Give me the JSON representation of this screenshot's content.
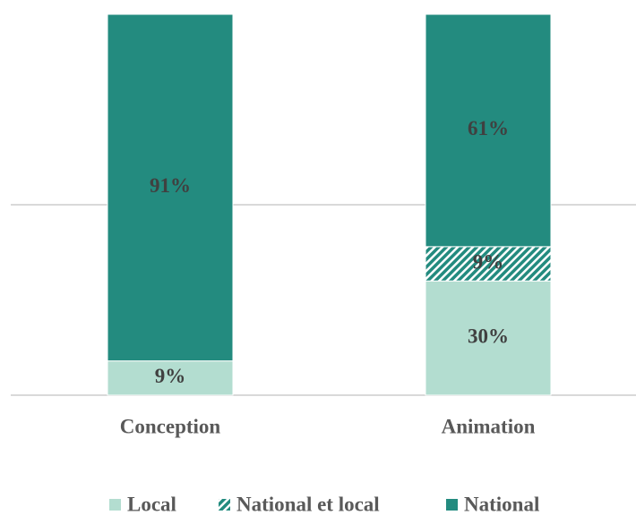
{
  "chart_data": {
    "type": "stacked_bar",
    "categories": [
      "Conception",
      "Animation"
    ],
    "series": [
      {
        "name": "Local",
        "color": "#b3ddd0",
        "values": [
          9,
          30
        ],
        "value_labels": [
          "9%",
          "30%"
        ]
      },
      {
        "name": "National et local",
        "color": "#238b7f",
        "pattern": "hatch",
        "values": [
          0,
          9
        ],
        "value_labels": [
          null,
          "9%"
        ]
      },
      {
        "name": "National",
        "color": "#238b7f",
        "values": [
          91,
          61
        ],
        "value_labels": [
          "91%",
          "61%"
        ]
      }
    ],
    "ylim": [
      0,
      100
    ],
    "yticks": [
      0,
      50
    ],
    "grid": true,
    "legend": "bottom"
  }
}
